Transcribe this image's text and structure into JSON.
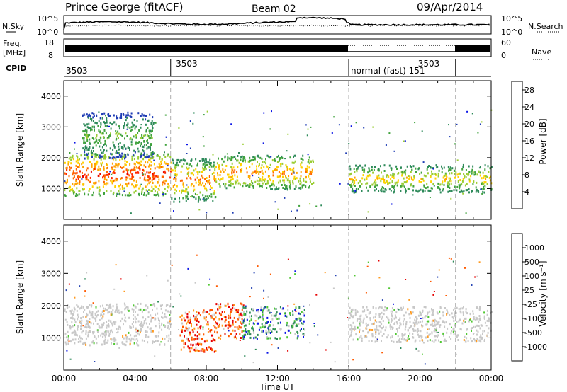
{
  "header": {
    "title": "Prince George (fitACF)",
    "beam": "Beam 02",
    "date": "09/Apr/2014"
  },
  "nsky_panel": {
    "left_label": "N.Sky",
    "left_ticks": [
      "10^5",
      "10^0"
    ],
    "right_ticks": [
      "10^5",
      "10^0"
    ],
    "right_label": "N.Search"
  },
  "freq_panel": {
    "left_label_top": "Freq.",
    "left_label_bottom": "[MHz]",
    "left_ticks": [
      "18",
      "8"
    ],
    "right_ticks": [
      "60",
      "0"
    ],
    "right_label": "Nave"
  },
  "cpid_panel": {
    "label": "CPID",
    "segments": [
      {
        "hour": 0,
        "label": "3503"
      },
      {
        "hour": 6,
        "label": "-3503"
      },
      {
        "hour": 16,
        "label": "normal (fast) 151"
      },
      {
        "hour": 19.6,
        "label": "-3503"
      }
    ],
    "dividers_hours": [
      6,
      16,
      22
    ]
  },
  "colors": {
    "power": [
      "#0a14e6",
      "#1e3cb4",
      "#2e8a5a",
      "#3fa23c",
      "#9acd32",
      "#ffd200",
      "#ffa500",
      "#ff6400",
      "#ff2800",
      "#e60000"
    ],
    "velocity": [
      "#e60000",
      "#ff5a00",
      "#ff9a1e",
      "#c8c8c8",
      "#c8c8c8",
      "#50c832",
      "#2e8a5a",
      "#2846b4",
      "#0a14e6"
    ]
  },
  "chart_data": [
    {
      "type": "heatmap",
      "panel": "power",
      "ylabel": "Slant Range [km]",
      "yticks": [
        "1000",
        "2000",
        "3000",
        "4000"
      ],
      "ylim": [
        0,
        4500
      ],
      "xlim_hours": [
        0,
        24
      ],
      "colorbar_label": "Power [dB]",
      "colorbar_ticks": [
        "4",
        "8",
        "12",
        "16",
        "20",
        "24",
        "28"
      ],
      "colorbar_range": [
        0,
        30
      ],
      "scatter_regions": [
        {
          "t0": 0,
          "t1": 6,
          "r0": 800,
          "r1": 2200,
          "vmin": 10,
          "vmax": 30
        },
        {
          "t0": 6,
          "t1": 8.5,
          "r0": 600,
          "r1": 2000,
          "vmin": 6,
          "vmax": 26
        },
        {
          "t0": 8.5,
          "t1": 14,
          "r0": 1000,
          "r1": 2100,
          "vmin": 8,
          "vmax": 24
        },
        {
          "t0": 16,
          "t1": 24,
          "r0": 900,
          "r1": 1800,
          "vmin": 6,
          "vmax": 20
        },
        {
          "t0": 1,
          "t1": 5,
          "r0": 2000,
          "r1": 3500,
          "vmin": 4,
          "vmax": 14
        }
      ]
    },
    {
      "type": "heatmap",
      "panel": "velocity",
      "ylabel": "Slant Range [km]",
      "xlabel": "Time UT",
      "yticks": [
        "1000",
        "2000",
        "3000",
        "4000"
      ],
      "xticks": [
        "00:00",
        "04:00",
        "08:00",
        "12:00",
        "16:00",
        "20:00",
        "00:00"
      ],
      "ylim": [
        0,
        4500
      ],
      "xlim_hours": [
        0,
        24
      ],
      "colorbar_label": "Velocity [m s⁻¹]",
      "colorbar_ticks": [
        "1000",
        "500",
        "100",
        "25",
        "-25",
        "-100",
        "-500",
        "-1000"
      ],
      "scatter_regions": [
        {
          "t0": 0,
          "t1": 6,
          "r0": 800,
          "r1": 2100,
          "class": "ground"
        },
        {
          "t0": 6.5,
          "t1": 8.5,
          "r0": 600,
          "r1": 1900,
          "class": "negative"
        },
        {
          "t0": 8.5,
          "t1": 10,
          "r0": 1000,
          "r1": 2100,
          "class": "negative"
        },
        {
          "t0": 10,
          "t1": 13.5,
          "r0": 1000,
          "r1": 2000,
          "class": "positive"
        },
        {
          "t0": 16,
          "t1": 24,
          "r0": 900,
          "r1": 2000,
          "class": "ground"
        }
      ]
    }
  ]
}
